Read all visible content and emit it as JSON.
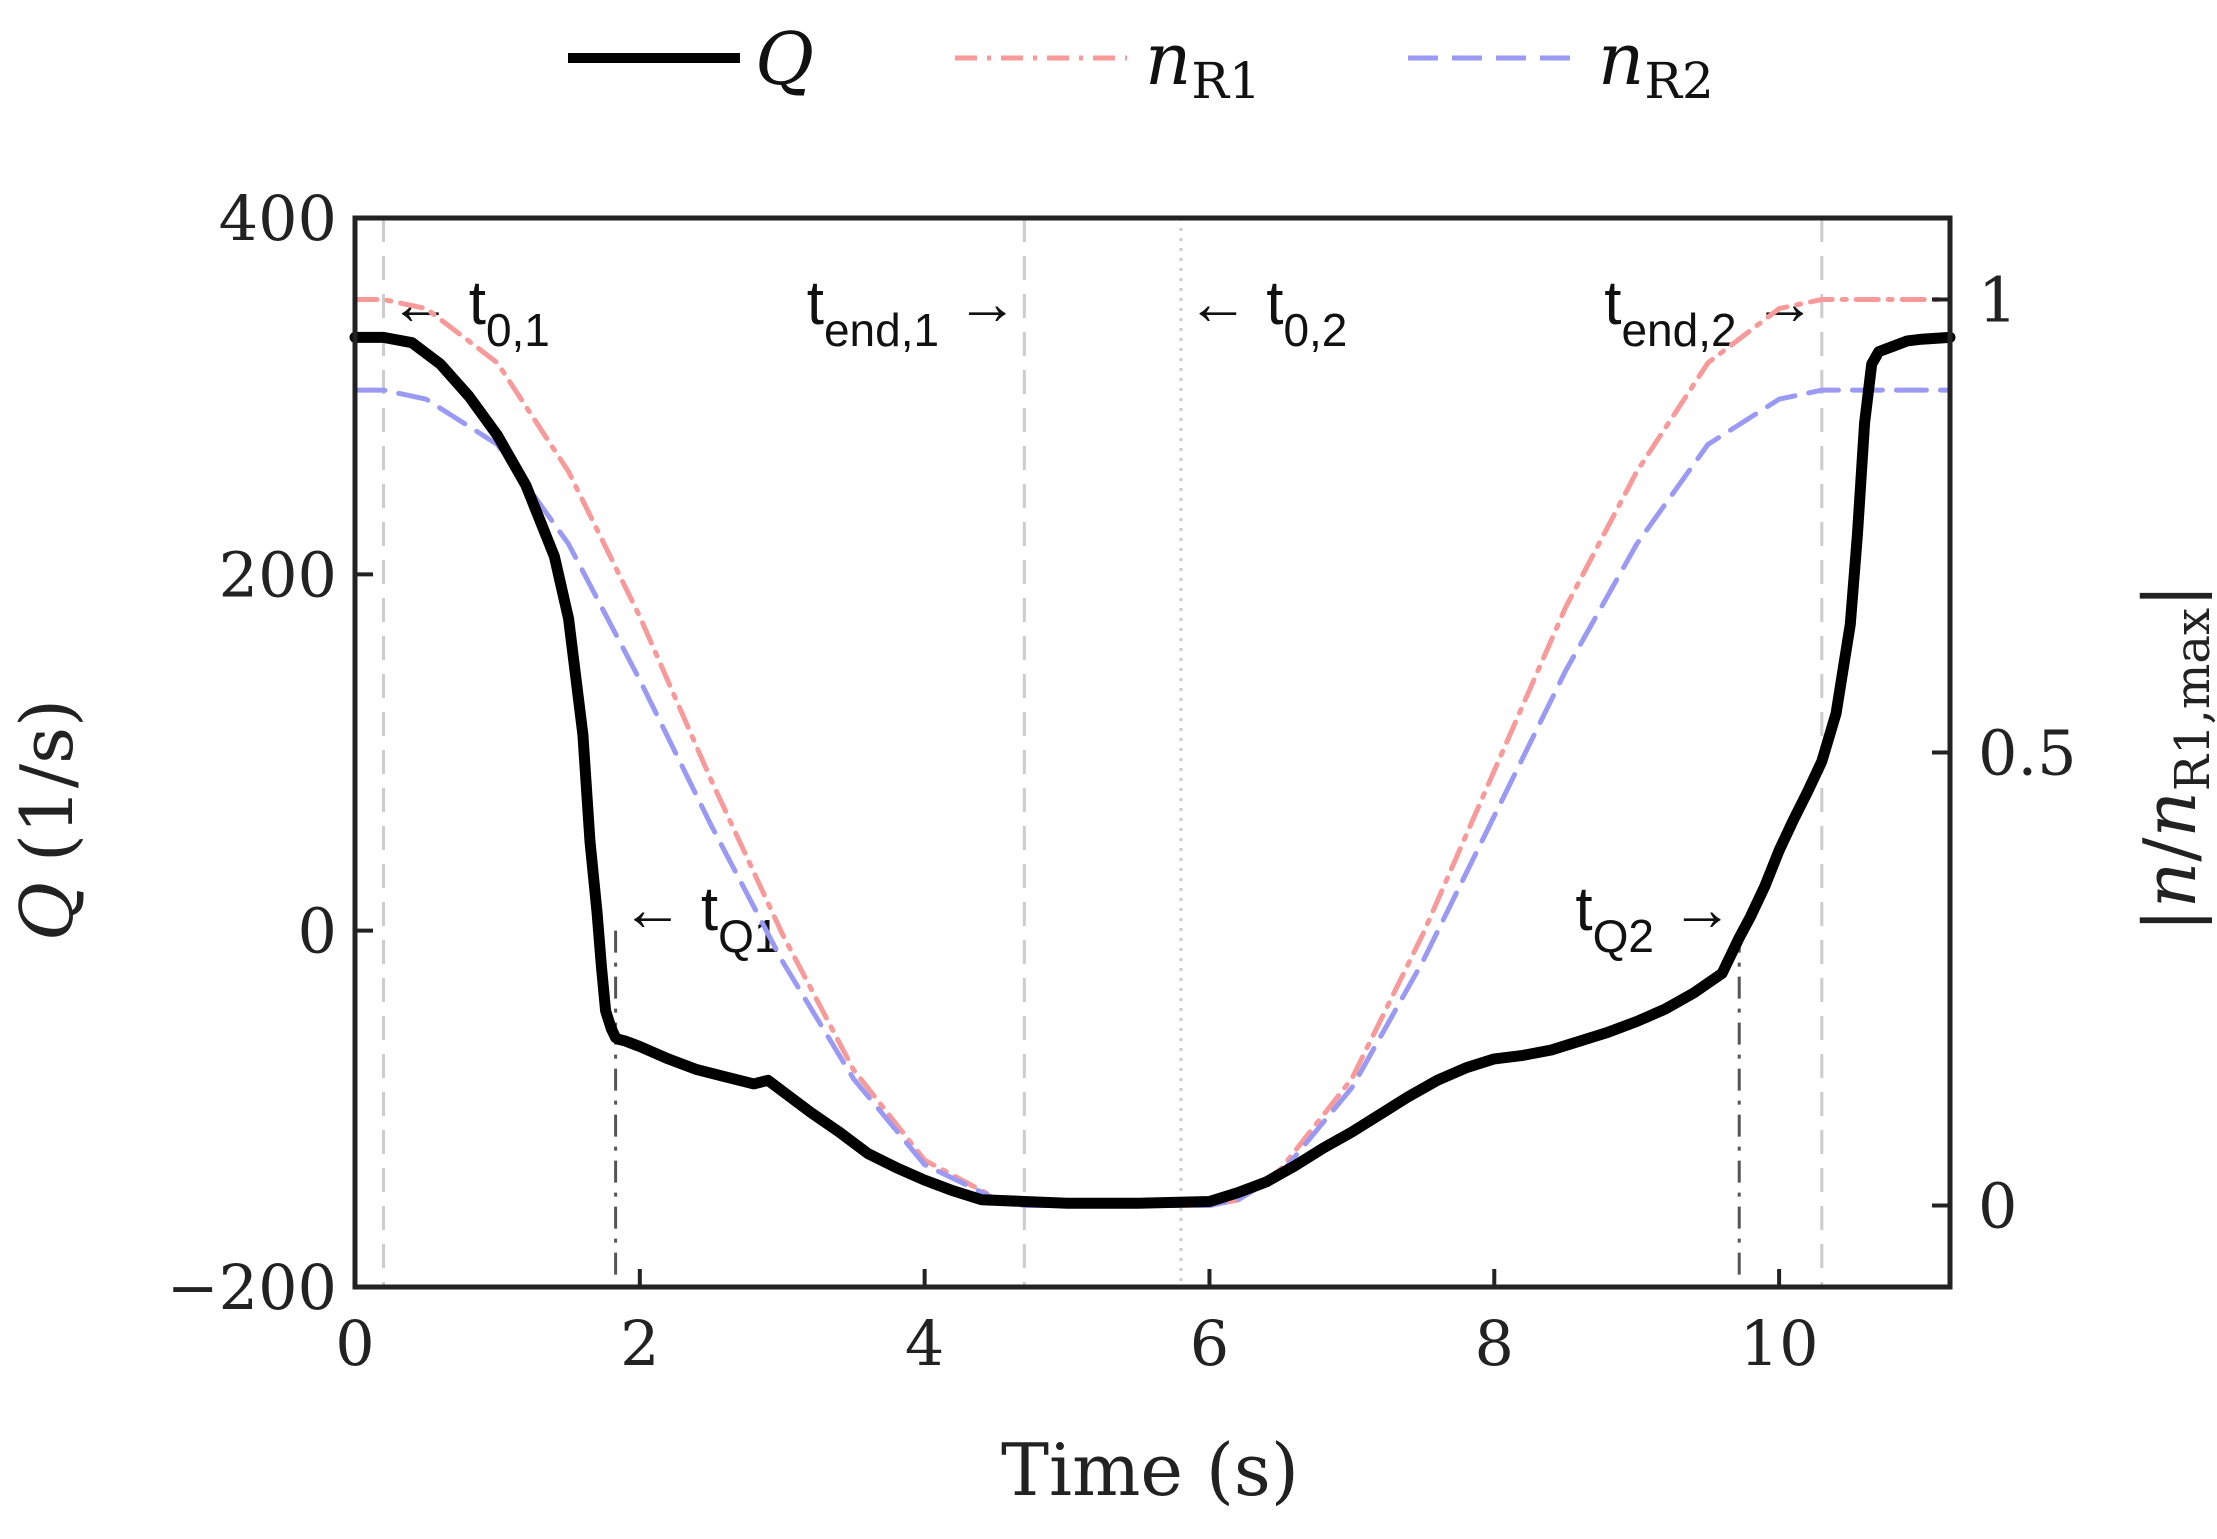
{
  "chart_data": {
    "type": "line",
    "xlabel": "Time (s)",
    "ylabel": {
      "italic": "Q",
      "unit": "(1/s)"
    },
    "y2label": {
      "prefix": "|",
      "n": "n",
      "slash": "/",
      "n2": "n",
      "sub": "R1,max",
      "suffix": "|"
    },
    "xlim": [
      0,
      11.2
    ],
    "ylim": [
      -200,
      400
    ],
    "y2lim": [
      -0.09,
      1.09
    ],
    "xticks": [
      0,
      2,
      4,
      6,
      8,
      10
    ],
    "yticks": [
      -200,
      0,
      200,
      400
    ],
    "y2ticks": [
      0,
      0.5,
      1
    ],
    "xtick_labels": [
      "0",
      "2",
      "4",
      "6",
      "8",
      "10"
    ],
    "ytick_labels": [
      "−200",
      "0",
      "200",
      "400"
    ],
    "y2tick_labels": [
      "0",
      "0.5",
      "1"
    ],
    "legend": [
      {
        "name": "Q",
        "sub": "",
        "color": "#000000",
        "style": "solid"
      },
      {
        "name": "n",
        "sub": "R1",
        "color": "#f89a9a",
        "style": "dashdot"
      },
      {
        "name": "n",
        "sub": "R2",
        "color": "#9a9af4",
        "style": "dashed"
      }
    ],
    "series": [
      {
        "name": "Q",
        "axis": "left",
        "color": "#000000",
        "style": "solid",
        "x": [
          0,
          0.2,
          0.4,
          0.6,
          0.8,
          1.0,
          1.2,
          1.4,
          1.5,
          1.6,
          1.65,
          1.7,
          1.73,
          1.76,
          1.8,
          1.83,
          1.85,
          1.9,
          2.0,
          2.2,
          2.4,
          2.6,
          2.8,
          2.9,
          3.0,
          3.2,
          3.4,
          3.6,
          3.8,
          4.0,
          4.2,
          4.4,
          4.7,
          5.0,
          5.5,
          6.0,
          6.2,
          6.4,
          6.6,
          6.8,
          7.0,
          7.2,
          7.4,
          7.6,
          7.8,
          8.0,
          8.2,
          8.4,
          8.6,
          8.8,
          9.0,
          9.2,
          9.4,
          9.6,
          9.72,
          9.8,
          9.9,
          10.0,
          10.1,
          10.2,
          10.3,
          10.4,
          10.5,
          10.55,
          10.6,
          10.65,
          10.7,
          10.8,
          10.9,
          11.0,
          11.2
        ],
        "y": [
          333,
          333,
          330,
          318,
          300,
          278,
          250,
          210,
          175,
          110,
          50,
          10,
          -20,
          -45,
          -55,
          -60,
          -61,
          -62,
          -65,
          -72,
          -78,
          -82,
          -86,
          -84,
          -90,
          -102,
          -113,
          -125,
          -133,
          -140,
          -146,
          -151,
          -152,
          -153,
          -153,
          -152,
          -147,
          -141,
          -132,
          -122,
          -113,
          -103,
          -93,
          -84,
          -77,
          -72,
          -70,
          -67,
          -62,
          -57,
          -51,
          -44,
          -35,
          -24,
          -4,
          8,
          25,
          45,
          62,
          78,
          95,
          122,
          172,
          222,
          285,
          318,
          325,
          328,
          331,
          332,
          333
        ]
      },
      {
        "name": "nR1",
        "axis": "right",
        "color": "#f89a9a",
        "style": "dashdot",
        "x": [
          0,
          0.2,
          0.5,
          1.0,
          1.5,
          2.0,
          2.5,
          3.0,
          3.5,
          4.0,
          4.5,
          4.7,
          5.0,
          5.5,
          5.8,
          6.0,
          6.2,
          6.5,
          7.0,
          7.5,
          8.0,
          8.5,
          9.0,
          9.5,
          10.0,
          10.3,
          10.6,
          11.0,
          11.2
        ],
        "y": [
          1.0,
          1.0,
          0.99,
          0.93,
          0.81,
          0.65,
          0.47,
          0.3,
          0.15,
          0.05,
          0.008,
          0.0,
          0.0,
          0.0,
          0.0,
          0.0,
          0.006,
          0.04,
          0.14,
          0.3,
          0.48,
          0.66,
          0.81,
          0.93,
          0.99,
          1.0,
          1.0,
          1.0,
          1.0
        ]
      },
      {
        "name": "nR2",
        "axis": "right",
        "color": "#9a9af4",
        "style": "dashed",
        "x": [
          0,
          0.2,
          0.5,
          1.0,
          1.5,
          2.0,
          2.5,
          3.0,
          3.5,
          4.0,
          4.5,
          4.7,
          5.0,
          5.5,
          5.8,
          6.0,
          6.2,
          6.5,
          7.0,
          7.5,
          8.0,
          8.5,
          9.0,
          9.5,
          10.0,
          10.3,
          10.6,
          11.0,
          11.2
        ],
        "y": [
          0.9,
          0.9,
          0.89,
          0.84,
          0.73,
          0.58,
          0.42,
          0.27,
          0.14,
          0.045,
          0.007,
          0.0,
          0.0,
          0.0,
          0.0,
          0.0,
          0.006,
          0.035,
          0.13,
          0.27,
          0.43,
          0.59,
          0.73,
          0.84,
          0.89,
          0.9,
          0.9,
          0.9,
          0.9
        ]
      }
    ],
    "markers": [
      {
        "id": "t01",
        "x": 0.2,
        "style": "dashed",
        "color": "#cccccc",
        "span": "full",
        "label": "t",
        "sub": "0,1",
        "arrow": "←",
        "side": "right",
        "y": 345
      },
      {
        "id": "tend1",
        "x": 4.7,
        "style": "dashed",
        "color": "#cccccc",
        "span": "full",
        "label": "t",
        "sub": "end,1",
        "arrow": "→",
        "side": "left",
        "y": 345
      },
      {
        "id": "t02",
        "x": 5.8,
        "style": "dotted",
        "color": "#cccccc",
        "span": "full",
        "label": "t",
        "sub": "0,2",
        "arrow": "←",
        "side": "right",
        "y": 345
      },
      {
        "id": "tend2",
        "x": 10.3,
        "style": "dashed",
        "color": "#cccccc",
        "span": "full",
        "label": "t",
        "sub": "end,2",
        "arrow": "→",
        "side": "left",
        "y": 345
      },
      {
        "id": "tQ1",
        "x": 1.83,
        "style": "dashdot",
        "color": "#555555",
        "span": "below-zero",
        "label": "t",
        "sub": "Q1",
        "arrow": "←",
        "side": "right",
        "y": 5
      },
      {
        "id": "tQ2",
        "x": 9.72,
        "style": "dashdot",
        "color": "#555555",
        "span": "below-zero",
        "label": "t",
        "sub": "Q2",
        "arrow": "→",
        "side": "left",
        "y": 5
      }
    ]
  }
}
